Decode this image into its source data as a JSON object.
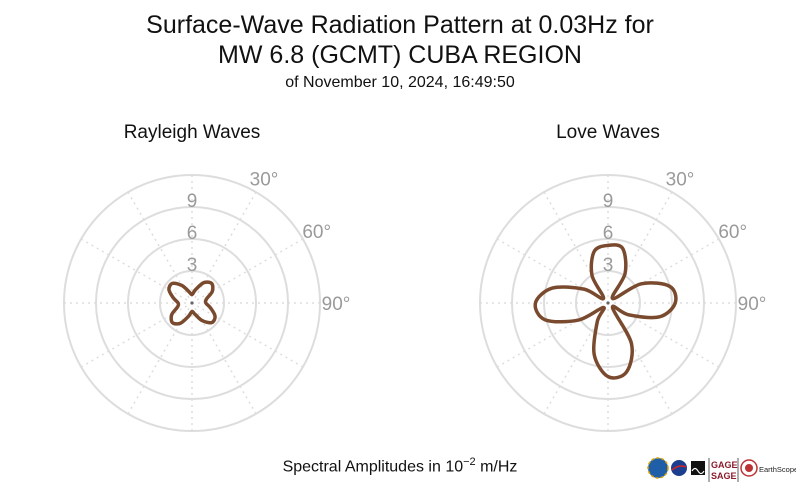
{
  "title": {
    "line1": "Surface-Wave Radiation Pattern at 0.03Hz for",
    "line2": "MW 6.8 (GCMT) CUBA REGION",
    "subtitle": "of November 10, 2024, 16:49:50"
  },
  "footer": {
    "prefix": "Spectral Amplitudes in ",
    "base": "10",
    "exponent": "−2",
    "unit": " m/Hz"
  },
  "logos": {
    "gage": "GAGE",
    "sage": "SAGE",
    "earthscope": "EarthScope"
  },
  "colors": {
    "pattern": "#7a4a2e",
    "grid": "#dddddd",
    "tick": "#9a9a9a"
  },
  "chart_data": [
    {
      "type": "polar-line",
      "title": "Rayleigh Waves",
      "radial_ticks": [
        "3",
        "6",
        "9"
      ],
      "radial_tick_values": [
        3,
        6,
        9
      ],
      "rmax": 12,
      "angle_ticks": [
        "30°",
        "60°",
        "90°"
      ],
      "angle_tick_values": [
        30,
        60,
        90
      ],
      "points": [
        {
          "azimuth": 0,
          "r": 0.8
        },
        {
          "azimuth": 15,
          "r": 1.3
        },
        {
          "azimuth": 30,
          "r": 2.2
        },
        {
          "azimuth": 45,
          "r": 2.6
        },
        {
          "azimuth": 60,
          "r": 2.2
        },
        {
          "azimuth": 75,
          "r": 1.4
        },
        {
          "azimuth": 90,
          "r": 1.3
        },
        {
          "azimuth": 105,
          "r": 1.8
        },
        {
          "azimuth": 120,
          "r": 2.5
        },
        {
          "azimuth": 135,
          "r": 2.6
        },
        {
          "azimuth": 150,
          "r": 1.9
        },
        {
          "azimuth": 165,
          "r": 1.1
        },
        {
          "azimuth": 180,
          "r": 0.8
        },
        {
          "azimuth": 195,
          "r": 1.3
        },
        {
          "azimuth": 210,
          "r": 2.2
        },
        {
          "azimuth": 225,
          "r": 2.6
        },
        {
          "azimuth": 240,
          "r": 2.2
        },
        {
          "azimuth": 255,
          "r": 1.4
        },
        {
          "azimuth": 270,
          "r": 1.3
        },
        {
          "azimuth": 285,
          "r": 1.8
        },
        {
          "azimuth": 300,
          "r": 2.5
        },
        {
          "azimuth": 315,
          "r": 2.6
        },
        {
          "azimuth": 330,
          "r": 1.9
        },
        {
          "azimuth": 345,
          "r": 1.1
        }
      ]
    },
    {
      "type": "polar-line",
      "title": "Love Waves",
      "radial_ticks": [
        "3",
        "6",
        "9"
      ],
      "radial_tick_values": [
        3,
        6,
        9
      ],
      "rmax": 12,
      "angle_ticks": [
        "30°",
        "60°",
        "90°"
      ],
      "angle_tick_values": [
        30,
        60,
        90
      ],
      "points": [
        {
          "azimuth": 0,
          "r": 5.4
        },
        {
          "azimuth": 15,
          "r": 5.3
        },
        {
          "azimuth": 30,
          "r": 3.2
        },
        {
          "azimuth": 45,
          "r": 0.6
        },
        {
          "azimuth": 60,
          "r": 3.6
        },
        {
          "azimuth": 75,
          "r": 6.0
        },
        {
          "azimuth": 90,
          "r": 6.3
        },
        {
          "azimuth": 105,
          "r": 5.0
        },
        {
          "azimuth": 120,
          "r": 2.2
        },
        {
          "azimuth": 135,
          "r": 0.6
        },
        {
          "azimuth": 150,
          "r": 4.4
        },
        {
          "azimuth": 165,
          "r": 6.7
        },
        {
          "azimuth": 180,
          "r": 6.9
        },
        {
          "azimuth": 195,
          "r": 5.0
        },
        {
          "azimuth": 210,
          "r": 2.0
        },
        {
          "azimuth": 225,
          "r": 0.6
        },
        {
          "azimuth": 240,
          "r": 3.2
        },
        {
          "azimuth": 255,
          "r": 6.1
        },
        {
          "azimuth": 270,
          "r": 6.8
        },
        {
          "azimuth": 285,
          "r": 5.4
        },
        {
          "azimuth": 300,
          "r": 2.6
        },
        {
          "azimuth": 315,
          "r": 0.6
        },
        {
          "azimuth": 330,
          "r": 3.0
        },
        {
          "azimuth": 345,
          "r": 5.0
        }
      ]
    }
  ]
}
